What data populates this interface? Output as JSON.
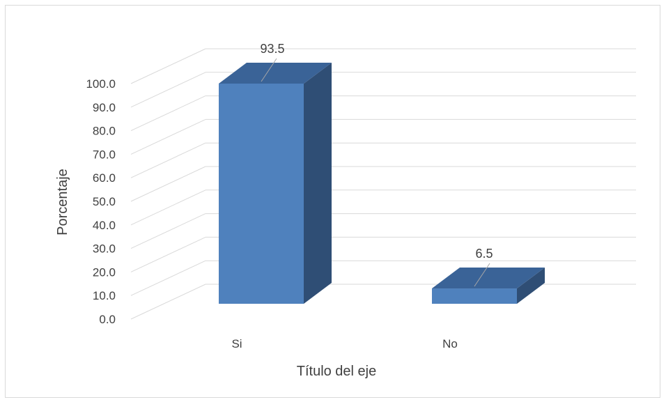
{
  "chart_data": {
    "type": "bar",
    "categories": [
      "Si",
      "No"
    ],
    "values": [
      93.5,
      6.5
    ],
    "data_labels": [
      "93.5",
      "6.5"
    ],
    "title": "",
    "xlabel": "Título del eje",
    "ylabel": "Porcentaje",
    "ylim": [
      0,
      100
    ],
    "ytick_step": 10,
    "ytick_labels": [
      "0.0",
      "10.0",
      "20.0",
      "30.0",
      "40.0",
      "50.0",
      "60.0",
      "70.0",
      "80.0",
      "90.0",
      "100.0"
    ],
    "grid": true,
    "legend": "none",
    "style": "3d-column",
    "colors": {
      "front": "#4f81bd",
      "side": "#2f4e75",
      "top": "#3a6397",
      "grid": "#d9d9d9",
      "text": "#404040"
    }
  }
}
